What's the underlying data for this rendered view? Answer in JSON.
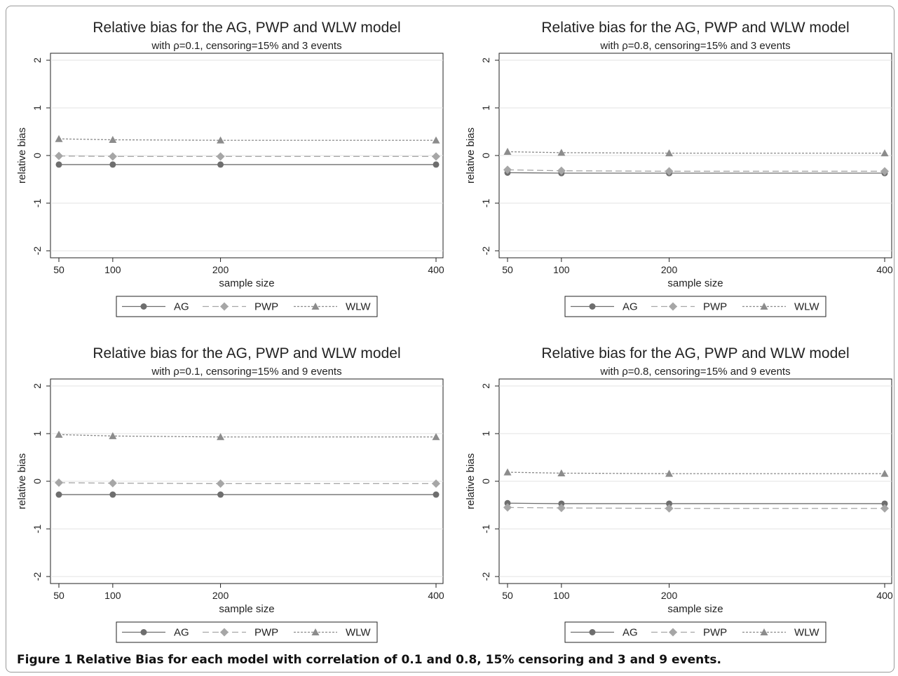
{
  "figure": {
    "caption_label": "Figure 1",
    "caption_text": "Relative Bias for each model with correlation of 0.1 and 0.8, 15% censoring and 3 and 9 events."
  },
  "colors": {
    "AG": "#6e6e6e",
    "PWP": "#a6a6a6",
    "WLW": "#8c8c8c",
    "grid": "#e3e3e3",
    "axis": "#222222"
  },
  "chart_data": [
    {
      "type": "line",
      "title": "Relative bias for the AG, PWP and WLW model",
      "subtitle": "with ρ=0.1, censoring=15% and 3 events",
      "xlabel": "sample size",
      "ylabel": "relative bias",
      "x": [
        50,
        100,
        200,
        400
      ],
      "xticks": [
        "50",
        "100",
        "200",
        "400"
      ],
      "yticks": [
        "-2",
        "-1",
        "0",
        "1",
        "2"
      ],
      "xlim": [
        50,
        400
      ],
      "ylim": [
        -2,
        2
      ],
      "grid": true,
      "legend_position": "bottom",
      "series": [
        {
          "name": "AG",
          "marker": "circle",
          "dash": "solid",
          "values": [
            -0.19,
            -0.19,
            -0.19,
            -0.19
          ]
        },
        {
          "name": "PWP",
          "marker": "diamond",
          "dash": "dashed",
          "values": [
            -0.01,
            -0.02,
            -0.02,
            -0.02
          ]
        },
        {
          "name": "WLW",
          "marker": "triangle",
          "dash": "dotted",
          "values": [
            0.35,
            0.33,
            0.32,
            0.32
          ]
        }
      ]
    },
    {
      "type": "line",
      "title": "Relative bias for the AG, PWP and WLW model",
      "subtitle": "with ρ=0.8, censoring=15% and 3 events",
      "xlabel": "sample size",
      "ylabel": "relative bias",
      "x": [
        50,
        100,
        200,
        400
      ],
      "xticks": [
        "50",
        "100",
        "200",
        "400"
      ],
      "yticks": [
        "-2",
        "-1",
        "0",
        "1",
        "2"
      ],
      "xlim": [
        50,
        400
      ],
      "ylim": [
        -2,
        2
      ],
      "grid": true,
      "legend_position": "bottom",
      "series": [
        {
          "name": "AG",
          "marker": "circle",
          "dash": "solid",
          "values": [
            -0.36,
            -0.37,
            -0.37,
            -0.37
          ]
        },
        {
          "name": "PWP",
          "marker": "diamond",
          "dash": "dashed",
          "values": [
            -0.3,
            -0.32,
            -0.33,
            -0.33
          ]
        },
        {
          "name": "WLW",
          "marker": "triangle",
          "dash": "dotted",
          "values": [
            0.08,
            0.06,
            0.05,
            0.05
          ]
        }
      ]
    },
    {
      "type": "line",
      "title": "Relative bias for the AG, PWP and WLW model",
      "subtitle": "with ρ=0.1, censoring=15% and 9 events",
      "xlabel": "sample size",
      "ylabel": "relative bias",
      "x": [
        50,
        100,
        200,
        400
      ],
      "xticks": [
        "50",
        "100",
        "200",
        "400"
      ],
      "yticks": [
        "-2",
        "-1",
        "0",
        "1",
        "2"
      ],
      "xlim": [
        50,
        400
      ],
      "ylim": [
        -2,
        2
      ],
      "grid": true,
      "legend_position": "bottom",
      "series": [
        {
          "name": "AG",
          "marker": "circle",
          "dash": "solid",
          "values": [
            -0.28,
            -0.28,
            -0.28,
            -0.28
          ]
        },
        {
          "name": "PWP",
          "marker": "diamond",
          "dash": "dashed",
          "values": [
            -0.03,
            -0.04,
            -0.05,
            -0.05
          ]
        },
        {
          "name": "WLW",
          "marker": "triangle",
          "dash": "dotted",
          "values": [
            0.98,
            0.95,
            0.93,
            0.93
          ]
        }
      ]
    },
    {
      "type": "line",
      "title": "Relative bias for the AG, PWP and WLW model",
      "subtitle": "with ρ=0.8, censoring=15% and 9 events",
      "xlabel": "sample size",
      "ylabel": "relative bias",
      "x": [
        50,
        100,
        200,
        400
      ],
      "xticks": [
        "50",
        "100",
        "200",
        "400"
      ],
      "yticks": [
        "-2",
        "-1",
        "0",
        "1",
        "2"
      ],
      "xlim": [
        50,
        400
      ],
      "ylim": [
        -2,
        2
      ],
      "grid": true,
      "legend_position": "bottom",
      "series": [
        {
          "name": "AG",
          "marker": "circle",
          "dash": "solid",
          "values": [
            -0.46,
            -0.47,
            -0.47,
            -0.47
          ]
        },
        {
          "name": "PWP",
          "marker": "diamond",
          "dash": "dashed",
          "values": [
            -0.55,
            -0.56,
            -0.57,
            -0.57
          ]
        },
        {
          "name": "WLW",
          "marker": "triangle",
          "dash": "dotted",
          "values": [
            0.19,
            0.17,
            0.16,
            0.16
          ]
        }
      ]
    }
  ]
}
